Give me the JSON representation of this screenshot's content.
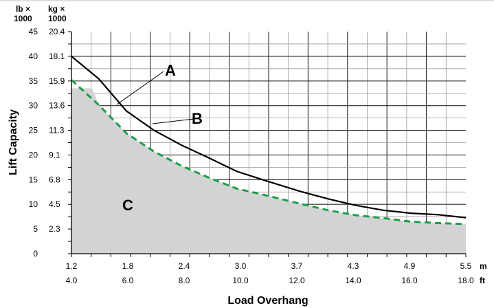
{
  "chart_data": {
    "type": "line",
    "xlabel": "Load Overhang",
    "ylabel": "Lift Capacity",
    "x_units": [
      "m",
      "ft"
    ],
    "y_units": [
      "lb × 1000",
      "kg × 1000"
    ],
    "x_m": [
      1.2,
      1.5,
      1.8,
      2.1,
      2.4,
      2.7,
      3.0,
      3.35,
      3.7,
      4.0,
      4.3,
      4.6,
      4.9,
      5.2,
      5.5
    ],
    "x_ticks_m": [
      "1.2",
      "1.8",
      "2.4",
      "3.0",
      "3.7",
      "4.3",
      "4.9",
      "5.5"
    ],
    "x_ticks_ft": [
      "4.0",
      "6.0",
      "8.0",
      "10.0",
      "12.0",
      "14.0",
      "16.0",
      "18.0"
    ],
    "y_ticks_lb": [
      "0",
      "5",
      "10",
      "15",
      "20",
      "25",
      "30",
      "35",
      "40",
      "45"
    ],
    "y_ticks_kg": [
      "",
      "2.3",
      "4.5",
      "6.8",
      "9.1",
      "11.3",
      "13.6",
      "15.9",
      "18.1",
      "20.4"
    ],
    "xlim_m": [
      1.2,
      5.5
    ],
    "ylim_lb": [
      0,
      45
    ],
    "grid": true,
    "series": [
      {
        "name": "A",
        "style": "solid",
        "color": "#000000",
        "values": [
          40.0,
          35.4,
          28.9,
          25.0,
          22.0,
          19.4,
          16.7,
          14.6,
          12.6,
          11.1,
          9.8,
          8.8,
          8.2,
          7.9,
          7.3
        ]
      },
      {
        "name": "B",
        "style": "dashed",
        "color": "#1a9e48",
        "values": [
          35.2,
          30.1,
          24.4,
          20.7,
          17.8,
          15.4,
          13.2,
          11.7,
          10.1,
          8.8,
          7.8,
          7.2,
          6.5,
          6.2,
          6.0
        ]
      },
      {
        "name": "C",
        "style": "area",
        "color": "#d3d3d5",
        "values": [
          33.5,
          30.1,
          24.4,
          20.7,
          17.8,
          15.4,
          13.2,
          11.7,
          10.1,
          8.8,
          7.8,
          7.2,
          6.5,
          6.2,
          6.0
        ]
      }
    ],
    "annotations": [
      {
        "text": "A",
        "series": "A"
      },
      {
        "text": "B",
        "series": "B"
      },
      {
        "text": "C",
        "series": "C"
      }
    ]
  }
}
